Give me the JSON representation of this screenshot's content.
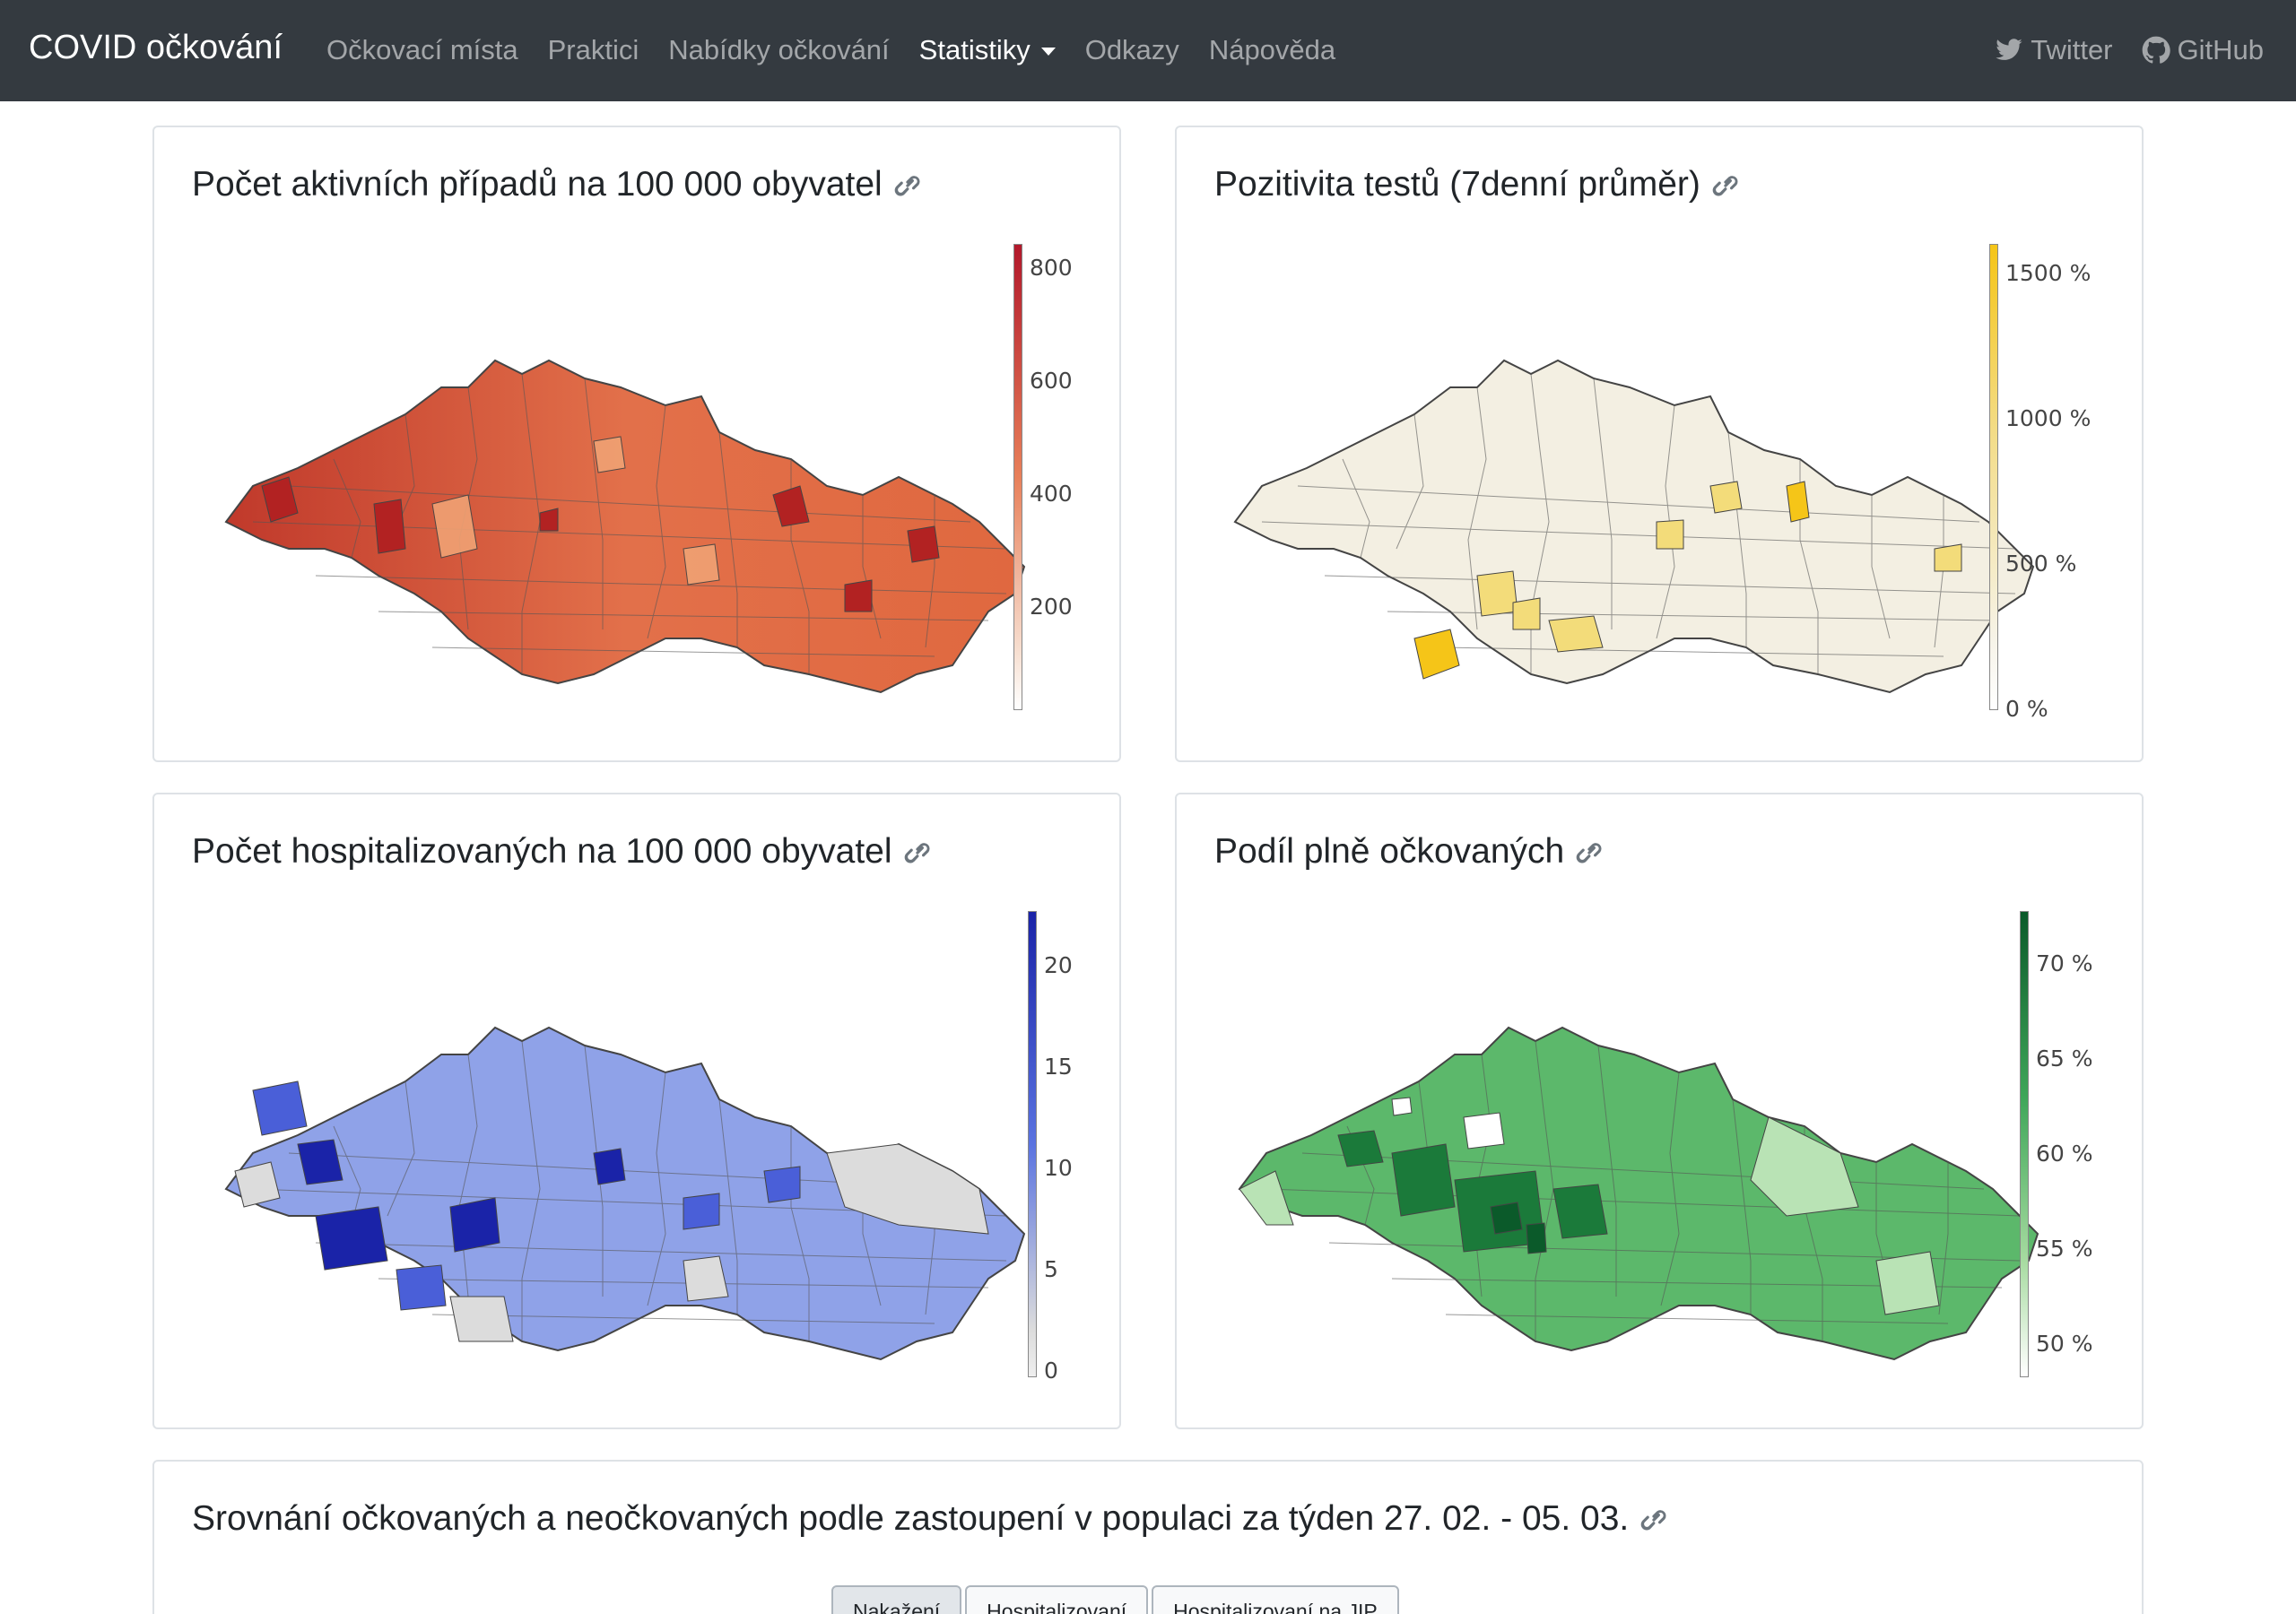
{
  "navbar": {
    "brand": "COVID očkování",
    "links": [
      "Očkovací místa",
      "Praktici",
      "Nabídky očkování",
      "Statistiky",
      "Odkazy",
      "Nápověda"
    ],
    "right_links": [
      "Twitter",
      "GitHub"
    ]
  },
  "cards": {
    "active_cases": {
      "title": "Počet aktivních případů na 100 000 obyvatel",
      "colorbar_ticks": [
        "800",
        "600",
        "400",
        "200"
      ],
      "colors": {
        "high": "#b2182b",
        "mid": "#e8805a",
        "low": "#f7e0d2"
      }
    },
    "positivity": {
      "title": "Pozitivita testů (7denní průměr)",
      "colorbar_ticks": [
        "1500 %",
        "1000 %",
        "500 %",
        "0 %"
      ],
      "colors": {
        "high": "#f5c518",
        "low": "#f6f3e8"
      }
    },
    "hospitalized": {
      "title": "Počet hospitalizovaných na 100 000 obyvatel",
      "colorbar_ticks": [
        "20",
        "15",
        "10",
        "5",
        "0"
      ],
      "colors": {
        "high": "#1a23a8",
        "mid": "#5a73e0",
        "low": "#dcdcdc"
      }
    },
    "vaccinated": {
      "title": "Podíl plně očkovaných",
      "colorbar_ticks": [
        "70 %",
        "65 %",
        "60 %",
        "55 %",
        "50 %"
      ],
      "colors": {
        "high": "#0b5a2a",
        "mid": "#3fa659",
        "low": "#eef7ec"
      }
    },
    "comparison": {
      "title": "Srovnání očkovaných a neočkovaných podle zastoupení v populaci za týden 27. 02. - 05. 03.",
      "buttons": [
        "Nakažení",
        "Hospitalizovaní",
        "Hospitalizovaní na JIP"
      ]
    }
  }
}
